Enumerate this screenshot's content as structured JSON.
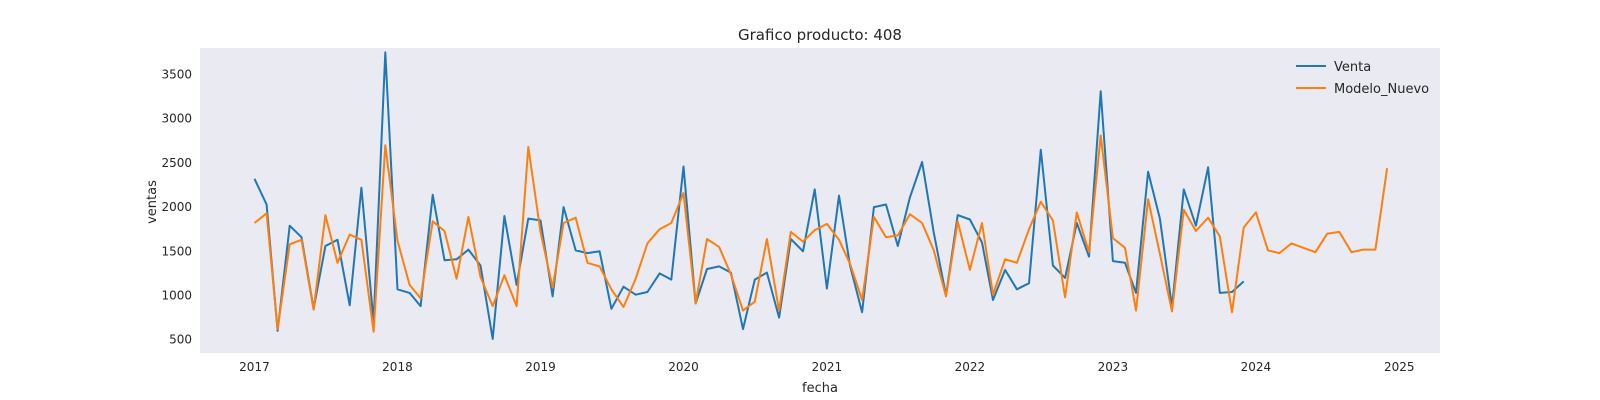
{
  "chart_data": {
    "type": "line",
    "title": "Grafico producto: 408",
    "xlabel": "fecha",
    "ylabel": "ventas",
    "xlim": [
      "2016-08-15",
      "2025-04-15"
    ],
    "ylim": [
      350,
      3800
    ],
    "x_ticks": [
      "2017",
      "2018",
      "2019",
      "2020",
      "2021",
      "2022",
      "2023",
      "2024",
      "2025"
    ],
    "y_ticks": [
      500,
      1000,
      1500,
      2000,
      2500,
      3000,
      3500
    ],
    "grid": false,
    "background": "#eaeaf2",
    "legend_position": "top-right",
    "series": [
      {
        "name": "Venta",
        "color": "#1f77b4",
        "start": "2017-01",
        "values": [
          2320,
          2030,
          600,
          1790,
          1660,
          850,
          1560,
          1630,
          890,
          2220,
          700,
          3750,
          1070,
          1030,
          880,
          2140,
          1400,
          1410,
          1520,
          1340,
          510,
          1900,
          1120,
          1870,
          1850,
          990,
          2000,
          1510,
          1480,
          1500,
          850,
          1100,
          1010,
          1040,
          1250,
          1180,
          2460,
          910,
          1300,
          1330,
          1260,
          620,
          1180,
          1260,
          750,
          1640,
          1500,
          2200,
          1080,
          2130,
          1340,
          810,
          2000,
          2030,
          1560,
          2110,
          2510,
          1710,
          1000,
          1910,
          1860,
          1600,
          950,
          1290,
          1070,
          1140,
          2650,
          1340,
          1200,
          1820,
          1440,
          3310,
          1390,
          1370,
          1030,
          2400,
          1870,
          870,
          2200,
          1790,
          2450,
          1030,
          1040,
          1160
        ]
      },
      {
        "name": "Modelo_Nuevo",
        "color": "#ff7f0e",
        "start": "2017-01",
        "values": [
          1820,
          1930,
          620,
          1580,
          1630,
          840,
          1910,
          1370,
          1690,
          1630,
          590,
          2700,
          1620,
          1120,
          970,
          1840,
          1730,
          1190,
          1890,
          1210,
          880,
          1230,
          880,
          2680,
          1720,
          1090,
          1820,
          1880,
          1370,
          1330,
          1070,
          870,
          1190,
          1590,
          1750,
          1820,
          2160,
          910,
          1640,
          1550,
          1240,
          830,
          930,
          1640,
          830,
          1720,
          1610,
          1740,
          1810,
          1630,
          1360,
          950,
          1890,
          1660,
          1680,
          1920,
          1820,
          1510,
          990,
          1840,
          1290,
          1820,
          1010,
          1410,
          1370,
          1750,
          2060,
          1850,
          980,
          1940,
          1490,
          2810,
          1650,
          1540,
          830,
          2090,
          1470,
          820,
          1970,
          1730,
          1880,
          1670,
          810,
          1770,
          1940,
          1510,
          1480,
          1590,
          1540,
          1490,
          1700,
          1720,
          1490,
          1520,
          1520,
          2440
        ]
      }
    ]
  }
}
